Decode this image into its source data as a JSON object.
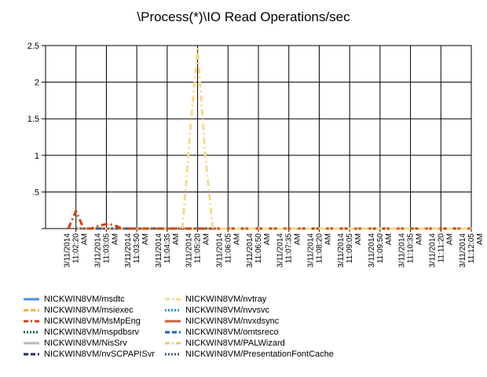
{
  "chart_data": {
    "type": "line",
    "title": "\\Process(*)\\IO Read Operations/sec",
    "xlabel": "",
    "ylabel": "",
    "ylim": [
      0,
      2.5
    ],
    "y_ticks": [
      "",
      ".5",
      "1",
      "1.5",
      "2",
      "2.5"
    ],
    "grid": true,
    "legend_position": "bottom",
    "categories": [
      "3/11/2014 11:02:20 AM",
      "3/11/2014 11:03:05 AM",
      "3/11/2014 11:03:50 AM",
      "3/11/2014 11:04:35 AM",
      "3/11/2014 11:05:20 AM",
      "3/11/2014 11:06:05 AM",
      "3/11/2014 11:06:50 AM",
      "3/11/2014 11:07:35 AM",
      "3/11/2014 11:08:20 AM",
      "3/11/2014 11:09:05 AM",
      "3/11/2014 11:09:50 AM",
      "3/11/2014 11:10:35 AM",
      "3/11/2014 11:11:20 AM",
      "3/11/2014 11:12:05 AM"
    ],
    "series": [
      {
        "name": "NICKWIN8VM/msdtc",
        "color": "#4a90e2",
        "dash": "solid",
        "points": [
          [
            0,
            0
          ],
          [
            13,
            0
          ]
        ]
      },
      {
        "name": "NICKWIN8VM/msiexec",
        "color": "#f0b030",
        "dash": "dash",
        "points": [
          [
            0,
            0
          ],
          [
            13,
            0
          ]
        ]
      },
      {
        "name": "NICKWIN8VM/MsMpEng",
        "color": "#d04010",
        "dash": "dashdot",
        "points": [
          [
            -0.25,
            0
          ],
          [
            0,
            0.24
          ],
          [
            0.25,
            0
          ],
          [
            0.5,
            0
          ],
          [
            0.75,
            0.04
          ],
          [
            1,
            0.06
          ],
          [
            1.25,
            0.05
          ],
          [
            1.5,
            0
          ],
          [
            13,
            0
          ]
        ]
      },
      {
        "name": "NICKWIN8VM/mspdbsrv",
        "color": "#1a5a50",
        "dash": "dot",
        "points": [
          [
            0,
            0
          ],
          [
            13,
            0
          ]
        ]
      },
      {
        "name": "NICKWIN8VM/NisSrv",
        "color": "#b8b8b8",
        "dash": "solid",
        "points": [
          [
            0,
            0
          ],
          [
            13,
            0
          ]
        ]
      },
      {
        "name": "NICKWIN8VM/nvSCPAPISvr",
        "color": "#1a2a60",
        "dash": "dash",
        "points": [
          [
            0,
            0
          ],
          [
            13,
            0
          ]
        ]
      },
      {
        "name": "NICKWIN8VM/nvtray",
        "color": "#f5d890",
        "dash": "dashdot",
        "points": [
          [
            3.5,
            0
          ],
          [
            3.75,
            1.3
          ],
          [
            4,
            2.45
          ],
          [
            4.25,
            1.0
          ],
          [
            4.5,
            0
          ],
          [
            13,
            0
          ]
        ]
      },
      {
        "name": "NICKWIN8VM/nvvsvc",
        "color": "#1890e0",
        "dash": "dot",
        "points": [
          [
            0,
            0
          ],
          [
            13,
            0
          ]
        ]
      },
      {
        "name": "NICKWIN8VM/nvxdsync",
        "color": "#c86040",
        "dash": "solid",
        "points": [
          [
            0,
            0
          ],
          [
            13,
            0
          ]
        ]
      },
      {
        "name": "NICKWIN8VM/omtsreco",
        "color": "#2060c0",
        "dash": "dash",
        "points": [
          [
            0,
            0
          ],
          [
            13,
            0
          ]
        ]
      },
      {
        "name": "NICKWIN8VM/PALWizard",
        "color": "#ecc870",
        "dash": "dashdot",
        "points": [
          [
            0,
            0
          ],
          [
            13,
            0
          ]
        ]
      },
      {
        "name": "NICKWIN8VM/PresentationFontCache",
        "color": "#485870",
        "dash": "dot",
        "points": [
          [
            0,
            0
          ],
          [
            13,
            0
          ]
        ]
      }
    ]
  }
}
